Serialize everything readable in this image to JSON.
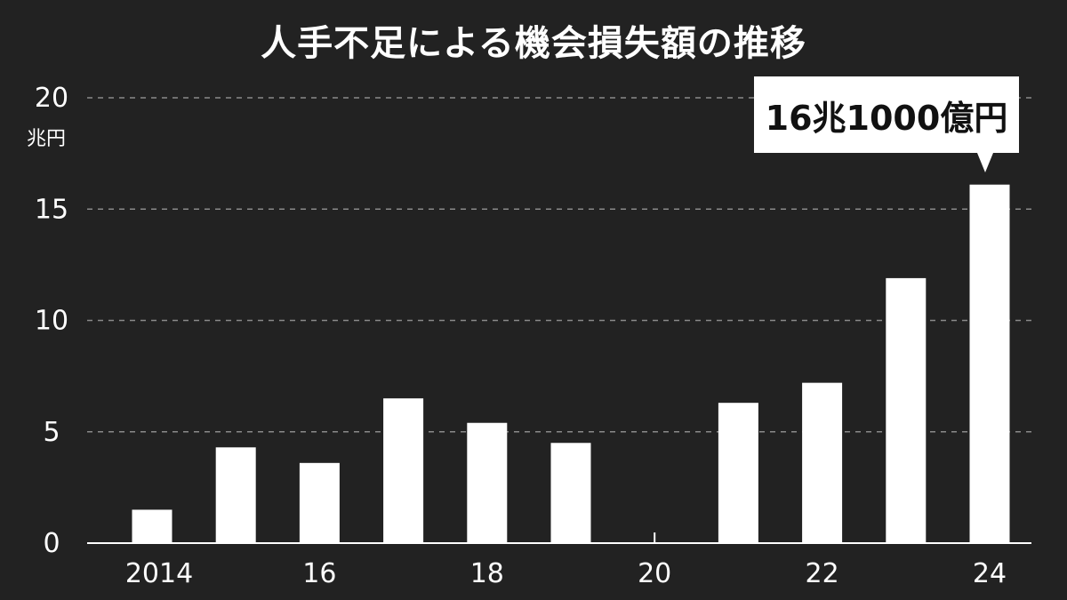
{
  "chart_data": {
    "type": "bar",
    "title": "人手不足による機会損失額の推移",
    "unit_label": "兆円",
    "categories": [
      "2014",
      "2015",
      "2016",
      "2017",
      "2018",
      "2019",
      "2020",
      "2021",
      "2022",
      "2023",
      "2024"
    ],
    "x_tick_labels": [
      "2014",
      "16",
      "18",
      "20",
      "22",
      "24"
    ],
    "x_tick_categories": [
      "2014",
      "2016",
      "2018",
      "2020",
      "2022",
      "2024"
    ],
    "values": [
      1.5,
      4.3,
      3.6,
      6.5,
      5.4,
      4.5,
      0,
      6.3,
      7.2,
      11.9,
      16.1
    ],
    "ylim": [
      0,
      20
    ],
    "y_ticks": [
      0,
      5,
      10,
      15,
      20
    ],
    "grid": true,
    "annotation": {
      "category": "2024",
      "text": "16兆1000億円"
    },
    "colors": {
      "background": "#222222",
      "bar": "#ffffff",
      "grid": "#8a8a8a",
      "text": "#ffffff"
    }
  }
}
